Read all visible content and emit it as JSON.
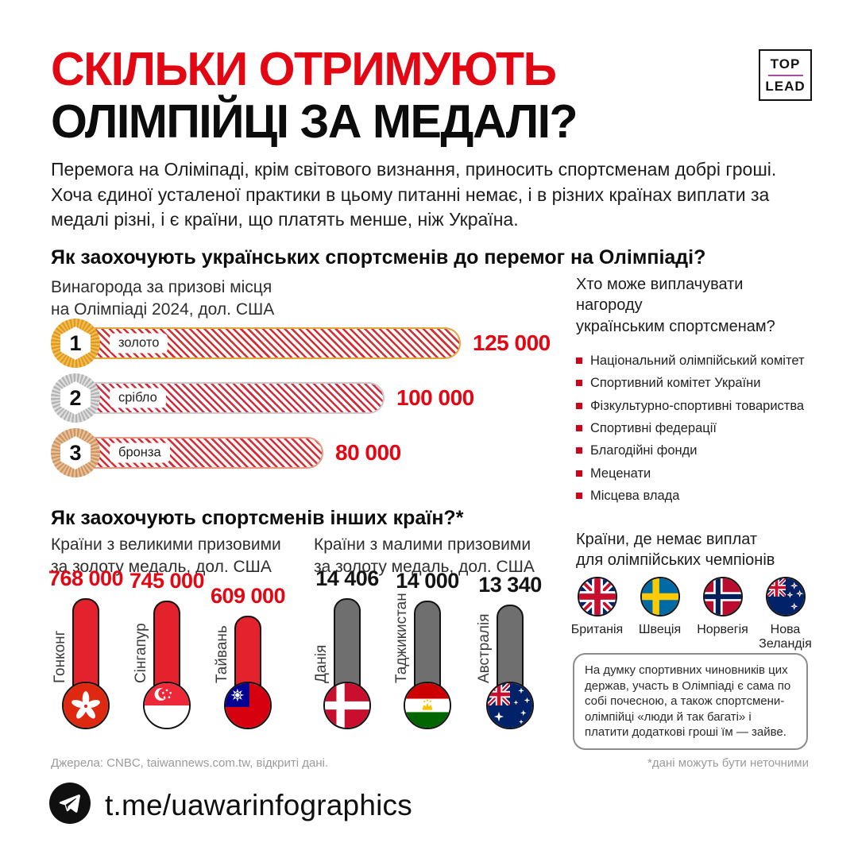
{
  "colors": {
    "accent_red": "#e30613",
    "hatch_red": "#d22b3c",
    "thermo_red": "#e3222e",
    "thermo_gray": "#6f6f6f",
    "gold": "#eaa73a",
    "silver": "#c7c7c7",
    "bronze": "#d9a87c",
    "brand_purple": "#a64d9e"
  },
  "brand": {
    "top": "TOP",
    "lead": "LEAD"
  },
  "header": {
    "title_line1": "СКІЛЬКИ ОТРИМУЮТЬ",
    "title_line2": "ОЛІМПІЙЦІ ЗА МЕДАЛІ?",
    "intro": "Перемога на Оліміпаді, крім світового визнання, приносить спортсменам добрі гроші. Хоча єдиної усталеної практики в цьому питанні немає, і в різних країнах виплати за медалі різні, і є країни, що платять менше, ніж Україна."
  },
  "section_ukraine": {
    "heading": "Як заохочують українських спортсменів до перемог на Олімпіаді?",
    "subtitle_line1": "Винагорода за призові місця",
    "subtitle_line2": "на Олімпіаді 2024, дол. США",
    "payers": {
      "heading_line1": "Хто може виплачувати нагороду",
      "heading_line2": "українським спортсменам?",
      "items": [
        "Національний олімпійський комітет",
        "Спортивний комітет України",
        "Фізкультурно-спортивні товариства",
        "Спортивні федерації",
        "Благодійні фонди",
        "Меценати",
        "Місцева влада"
      ]
    }
  },
  "section_other": {
    "heading": "Як заохочують спортсменів інших країн?*",
    "big_prizes_subtitle_line1": "Країни з великими призовими",
    "big_prizes_subtitle_line2": "за золоту медаль, дол. США",
    "small_prizes_subtitle_line1": "Країни з малими призовими",
    "small_prizes_subtitle_line2": "за золоту медаль, дол. США",
    "no_payout": {
      "heading_line1": "Країни, де немає виплат",
      "heading_line2": "для олімпійських чемпіонів",
      "countries": [
        "Британія",
        "Швеція",
        "Норвегія",
        "Нова Зеландія"
      ],
      "note": "На думку спортивних чиновників цих держав, участь в Олімпіаді є сама по собі почесною, а також спортсмени-олімпійці «люди й так багаті» і платити додаткові гроші їм — зайве."
    }
  },
  "chart_data": [
    {
      "type": "bar",
      "orientation": "horizontal",
      "title": "Винагорода за призові місця на Олімпіаді 2024, дол. США",
      "categories": [
        "золото",
        "срібло",
        "бронза"
      ],
      "ranks": [
        "1",
        "2",
        "3"
      ],
      "values": [
        125000,
        100000,
        80000
      ],
      "value_labels": [
        "125 000",
        "100 000",
        "80 000"
      ],
      "unit": "дол. США",
      "bar_style": "red-diagonal-hatch"
    },
    {
      "type": "bar",
      "style": "thermometer",
      "title": "Країни з великими призовими за золоту медаль, дол. США",
      "categories": [
        "Гонконг",
        "Сінгапур",
        "Тайвань"
      ],
      "values": [
        768000,
        745000,
        609000
      ],
      "value_labels": [
        "768 000",
        "745 000",
        "609 000"
      ],
      "color": "#e3222e"
    },
    {
      "type": "bar",
      "style": "thermometer",
      "title": "Країни з малими призовими за золоту медаль, дол. США",
      "categories": [
        "Данія",
        "Таджикистан",
        "Австралія"
      ],
      "values": [
        14406,
        14000,
        13340
      ],
      "value_labels": [
        "14 406",
        "14 000",
        "13 340"
      ],
      "color": "#6f6f6f"
    }
  ],
  "footer": {
    "sources": "Джерела: CNBC, taiwannews.com.tw, відкриті дані.",
    "disclaimer": "*дані можуть бути неточними",
    "telegram": "t.me/uawarinfographics"
  }
}
